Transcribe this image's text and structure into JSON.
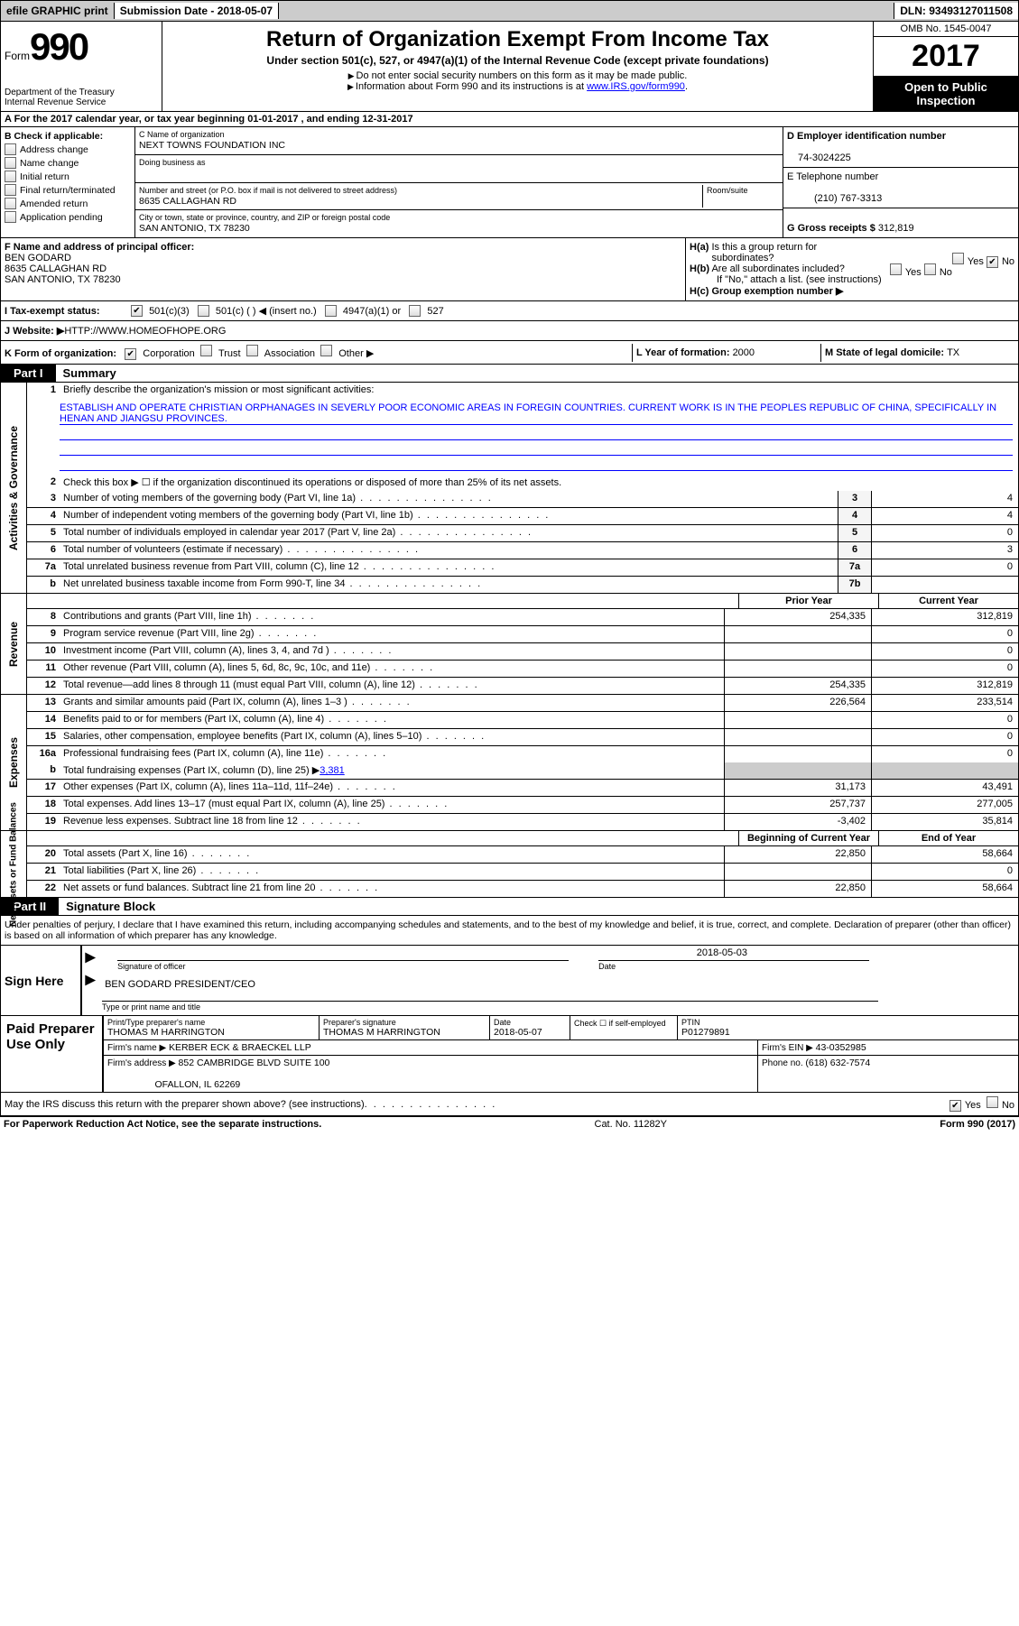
{
  "topbar": {
    "efile": "efile GRAPHIC print",
    "submission_label": "Submission Date - 2018-05-07",
    "dln": "DLN: 93493127011508"
  },
  "header": {
    "form_word": "Form",
    "form_no": "990",
    "dept1": "Department of the Treasury",
    "dept2": "Internal Revenue Service",
    "title": "Return of Organization Exempt From Income Tax",
    "subtitle": "Under section 501(c), 527, or 4947(a)(1) of the Internal Revenue Code (except private foundations)",
    "note1": "Do not enter social security numbers on this form as it may be made public.",
    "note2_pre": "Information about Form 990 and its instructions is at ",
    "note2_link": "www.IRS.gov/form990",
    "omb": "OMB No. 1545-0047",
    "year": "2017",
    "open": "Open to Public Inspection"
  },
  "rowA": "A  For the 2017 calendar year, or tax year beginning 01-01-2017    , and ending 12-31-2017",
  "checkB": {
    "title": "B Check if applicable:",
    "items": [
      "Address change",
      "Name change",
      "Initial return",
      "Final return/terminated",
      "Amended return",
      "Application pending"
    ]
  },
  "entity": {
    "c_lbl": "C Name of organization",
    "c_name": "NEXT TOWNS FOUNDATION INC",
    "dba_lbl": "Doing business as",
    "addr_lbl": "Number and street (or P.O. box if mail is not delivered to street address)",
    "room_lbl": "Room/suite",
    "addr": "8635 CALLAGHAN RD",
    "city_lbl": "City or town, state or province, country, and ZIP or foreign postal code",
    "city": "SAN ANTONIO, TX  78230",
    "d_lbl": "D Employer identification number",
    "d_val": "74-3024225",
    "e_lbl": "E Telephone number",
    "e_val": "(210) 767-3313",
    "g_lbl": "G Gross receipts $ ",
    "g_val": "312,819"
  },
  "officer": {
    "f_lbl": "F Name and address of principal officer:",
    "name": "BEN GODARD",
    "addr1": "8635 CALLAGHAN RD",
    "addr2": "SAN ANTONIO, TX  78230"
  },
  "ha": {
    "a_lbl": "H(a)  Is this a group return for subordinates?",
    "b_lbl": "H(b)  Are all subordinates included?",
    "b_note": "If \"No,\" attach a list. (see instructions)",
    "c_lbl": "H(c)  Group exemption number ▶"
  },
  "status": {
    "i_lbl": "I  Tax-exempt status:",
    "opts": [
      "501(c)(3)",
      "501(c) (   ) ◀ (insert no.)",
      "4947(a)(1) or",
      "527"
    ]
  },
  "website": {
    "j_lbl": "J  Website: ▶",
    "val": "  HTTP://WWW.HOMEOFHOPE.ORG"
  },
  "korg": {
    "k_lbl": "K Form of organization:",
    "opts": [
      "Corporation",
      "Trust",
      "Association",
      "Other ▶"
    ],
    "l_lbl": "L Year of formation: ",
    "l_val": "2000",
    "m_lbl": "M State of legal domicile: ",
    "m_val": "TX"
  },
  "part1": {
    "tag": "Part I",
    "title": "Summary"
  },
  "p1_1": "Briefly describe the organization's mission or most significant activities:",
  "mission": "ESTABLISH AND OPERATE CHRISTIAN ORPHANAGES IN SEVERLY POOR ECONOMIC AREAS IN FOREGIN COUNTRIES. CURRENT WORK IS IN THE PEOPLES REPUBLIC OF CHINA, SPECIFICALLY IN HENAN AND JIANGSU PROVINCES.",
  "p1_2": "Check this box ▶ ☐  if the organization discontinued its operations or disposed of more than 25% of its net assets.",
  "gov_lines": [
    {
      "n": "3",
      "d": "Number of voting members of the governing body (Part VI, line 1a)",
      "b": "3",
      "v": "4"
    },
    {
      "n": "4",
      "d": "Number of independent voting members of the governing body (Part VI, line 1b)",
      "b": "4",
      "v": "4"
    },
    {
      "n": "5",
      "d": "Total number of individuals employed in calendar year 2017 (Part V, line 2a)",
      "b": "5",
      "v": "0"
    },
    {
      "n": "6",
      "d": "Total number of volunteers (estimate if necessary)",
      "b": "6",
      "v": "3"
    },
    {
      "n": "7a",
      "d": "Total unrelated business revenue from Part VIII, column (C), line 12",
      "b": "7a",
      "v": "0"
    },
    {
      "n": "b",
      "d": "Net unrelated business taxable income from Form 990-T, line 34",
      "b": "7b",
      "v": ""
    }
  ],
  "hdr_py": "Prior Year",
  "hdr_cy": "Current Year",
  "rev_lines": [
    {
      "n": "8",
      "d": "Contributions and grants (Part VIII, line 1h)",
      "py": "254,335",
      "cy": "312,819"
    },
    {
      "n": "9",
      "d": "Program service revenue (Part VIII, line 2g)",
      "py": "",
      "cy": "0"
    },
    {
      "n": "10",
      "d": "Investment income (Part VIII, column (A), lines 3, 4, and 7d )",
      "py": "",
      "cy": "0"
    },
    {
      "n": "11",
      "d": "Other revenue (Part VIII, column (A), lines 5, 6d, 8c, 9c, 10c, and 11e)",
      "py": "",
      "cy": "0"
    },
    {
      "n": "12",
      "d": "Total revenue—add lines 8 through 11 (must equal Part VIII, column (A), line 12)",
      "py": "254,335",
      "cy": "312,819"
    }
  ],
  "exp_lines": [
    {
      "n": "13",
      "d": "Grants and similar amounts paid (Part IX, column (A), lines 1–3 )",
      "py": "226,564",
      "cy": "233,514"
    },
    {
      "n": "14",
      "d": "Benefits paid to or for members (Part IX, column (A), line 4)",
      "py": "",
      "cy": "0"
    },
    {
      "n": "15",
      "d": "Salaries, other compensation, employee benefits (Part IX, column (A), lines 5–10)",
      "py": "",
      "cy": "0"
    },
    {
      "n": "16a",
      "d": "Professional fundraising fees (Part IX, column (A), line 11e)",
      "py": "",
      "cy": "0"
    }
  ],
  "exp_b": {
    "n": "b",
    "d": "Total fundraising expenses (Part IX, column (D), line 25) ▶",
    "val": "3,381"
  },
  "exp_lines2": [
    {
      "n": "17",
      "d": "Other expenses (Part IX, column (A), lines 11a–11d, 11f–24e)",
      "py": "31,173",
      "cy": "43,491"
    },
    {
      "n": "18",
      "d": "Total expenses. Add lines 13–17 (must equal Part IX, column (A), line 25)",
      "py": "257,737",
      "cy": "277,005"
    },
    {
      "n": "19",
      "d": "Revenue less expenses. Subtract line 18 from line 12",
      "py": "-3,402",
      "cy": "35,814"
    }
  ],
  "hdr_boy": "Beginning of Current Year",
  "hdr_eoy": "End of Year",
  "na_lines": [
    {
      "n": "20",
      "d": "Total assets (Part X, line 16)",
      "py": "22,850",
      "cy": "58,664"
    },
    {
      "n": "21",
      "d": "Total liabilities (Part X, line 26)",
      "py": "",
      "cy": "0"
    },
    {
      "n": "22",
      "d": "Net assets or fund balances. Subtract line 21 from line 20",
      "py": "22,850",
      "cy": "58,664"
    }
  ],
  "vtabs": {
    "gov": "Activities & Governance",
    "rev": "Revenue",
    "exp": "Expenses",
    "na": "Net Assets or Fund Balances"
  },
  "part2": {
    "tag": "Part II",
    "title": "Signature Block"
  },
  "perjury": "Under penalties of perjury, I declare that I have examined this return, including accompanying schedules and statements, and to the best of my knowledge and belief, it is true, correct, and complete. Declaration of preparer (other than officer) is based on all information of which preparer has any knowledge.",
  "sign": {
    "here": "Sign Here",
    "sig_lbl": "Signature of officer",
    "date_lbl": "Date",
    "date_val": "2018-05-03",
    "name": "BEN GODARD  PRESIDENT/CEO",
    "name_lbl": "Type or print name and title"
  },
  "prep": {
    "left": "Paid Preparer Use Only",
    "r1": {
      "c1l": "Print/Type preparer's name",
      "c1v": "THOMAS M HARRINGTON",
      "c2l": "Preparer's signature",
      "c2v": "THOMAS M HARRINGTON",
      "c3l": "Date",
      "c3v": "2018-05-07",
      "c4l": "Check ☐ if self-employed",
      "c5l": "PTIN",
      "c5v": "P01279891"
    },
    "r2": {
      "c1l": "Firm's name      ▶ ",
      "c1v": "KERBER ECK & BRAECKEL LLP",
      "c2l": "Firm's EIN ▶ ",
      "c2v": "43-0352985"
    },
    "r3": {
      "c1l": "Firm's address ▶ ",
      "c1v": "852 CAMBRIDGE BLVD SUITE 100",
      "c1v2": "OFALLON, IL  62269",
      "c2l": "Phone no. ",
      "c2v": "(618) 632-7574"
    }
  },
  "discuss": "May the IRS discuss this return with the preparer shown above? (see instructions)",
  "yes": "Yes",
  "no": "No",
  "footer": {
    "left": "For Paperwork Reduction Act Notice, see the separate instructions.",
    "mid": "Cat. No. 11282Y",
    "right": "Form 990 (2017)"
  }
}
